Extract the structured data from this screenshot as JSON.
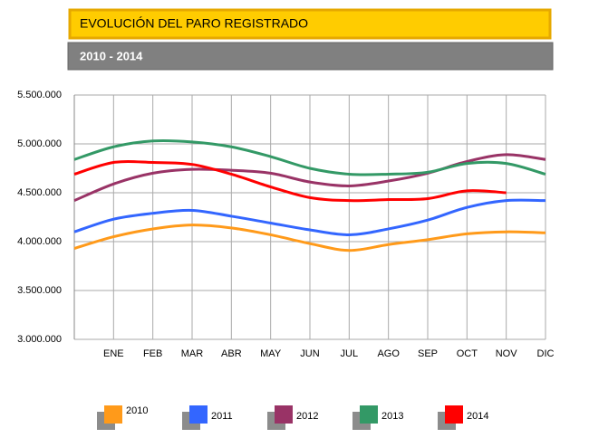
{
  "chart_data": {
    "type": "line",
    "title": "EVOLUCIÓN DEL PARO REGISTRADO",
    "subtitle": "2010 - 2014",
    "categories": [
      null,
      "ENE",
      "FEB",
      "MAR",
      "ABR",
      "MAY",
      "JUN",
      "JUL",
      "AGO",
      "SEP",
      "OCT",
      "NOV",
      "DIC"
    ],
    "series": [
      {
        "name": "2010",
        "color": "#ff9a1a",
        "values": [
          3930000,
          4050000,
          4130000,
          4170000,
          4140000,
          4070000,
          3980000,
          3910000,
          3970000,
          4020000,
          4080000,
          4100000,
          4090000
        ]
      },
      {
        "name": "2011",
        "color": "#3366ff",
        "values": [
          4100000,
          4230000,
          4290000,
          4320000,
          4260000,
          4190000,
          4120000,
          4070000,
          4130000,
          4220000,
          4350000,
          4420000,
          4420000
        ]
      },
      {
        "name": "2012",
        "color": "#993366",
        "values": [
          4420000,
          4590000,
          4700000,
          4740000,
          4730000,
          4700000,
          4610000,
          4570000,
          4620000,
          4700000,
          4820000,
          4890000,
          4840000
        ]
      },
      {
        "name": "2013",
        "color": "#339966",
        "values": [
          4840000,
          4970000,
          5030000,
          5020000,
          4970000,
          4870000,
          4750000,
          4690000,
          4690000,
          4710000,
          4800000,
          4800000,
          4690000
        ]
      },
      {
        "name": "2014",
        "color": "#ff0000",
        "values": [
          4690000,
          4810000,
          4810000,
          4790000,
          4690000,
          4560000,
          4450000,
          4420000,
          4430000,
          4440000,
          4520000,
          4500000,
          null
        ]
      }
    ],
    "ylim": [
      3000000,
      5500000
    ],
    "yticks": [
      {
        "value": 3000000,
        "label": "3.000.000"
      },
      {
        "value": 3500000,
        "label": "3.500.000"
      },
      {
        "value": 4000000,
        "label": "4.000.000"
      },
      {
        "value": 4500000,
        "label": "4.500.000"
      },
      {
        "value": 5000000,
        "label": "5.000.000"
      },
      {
        "value": 5500000,
        "label": "5.500.000"
      }
    ],
    "grid": true
  }
}
